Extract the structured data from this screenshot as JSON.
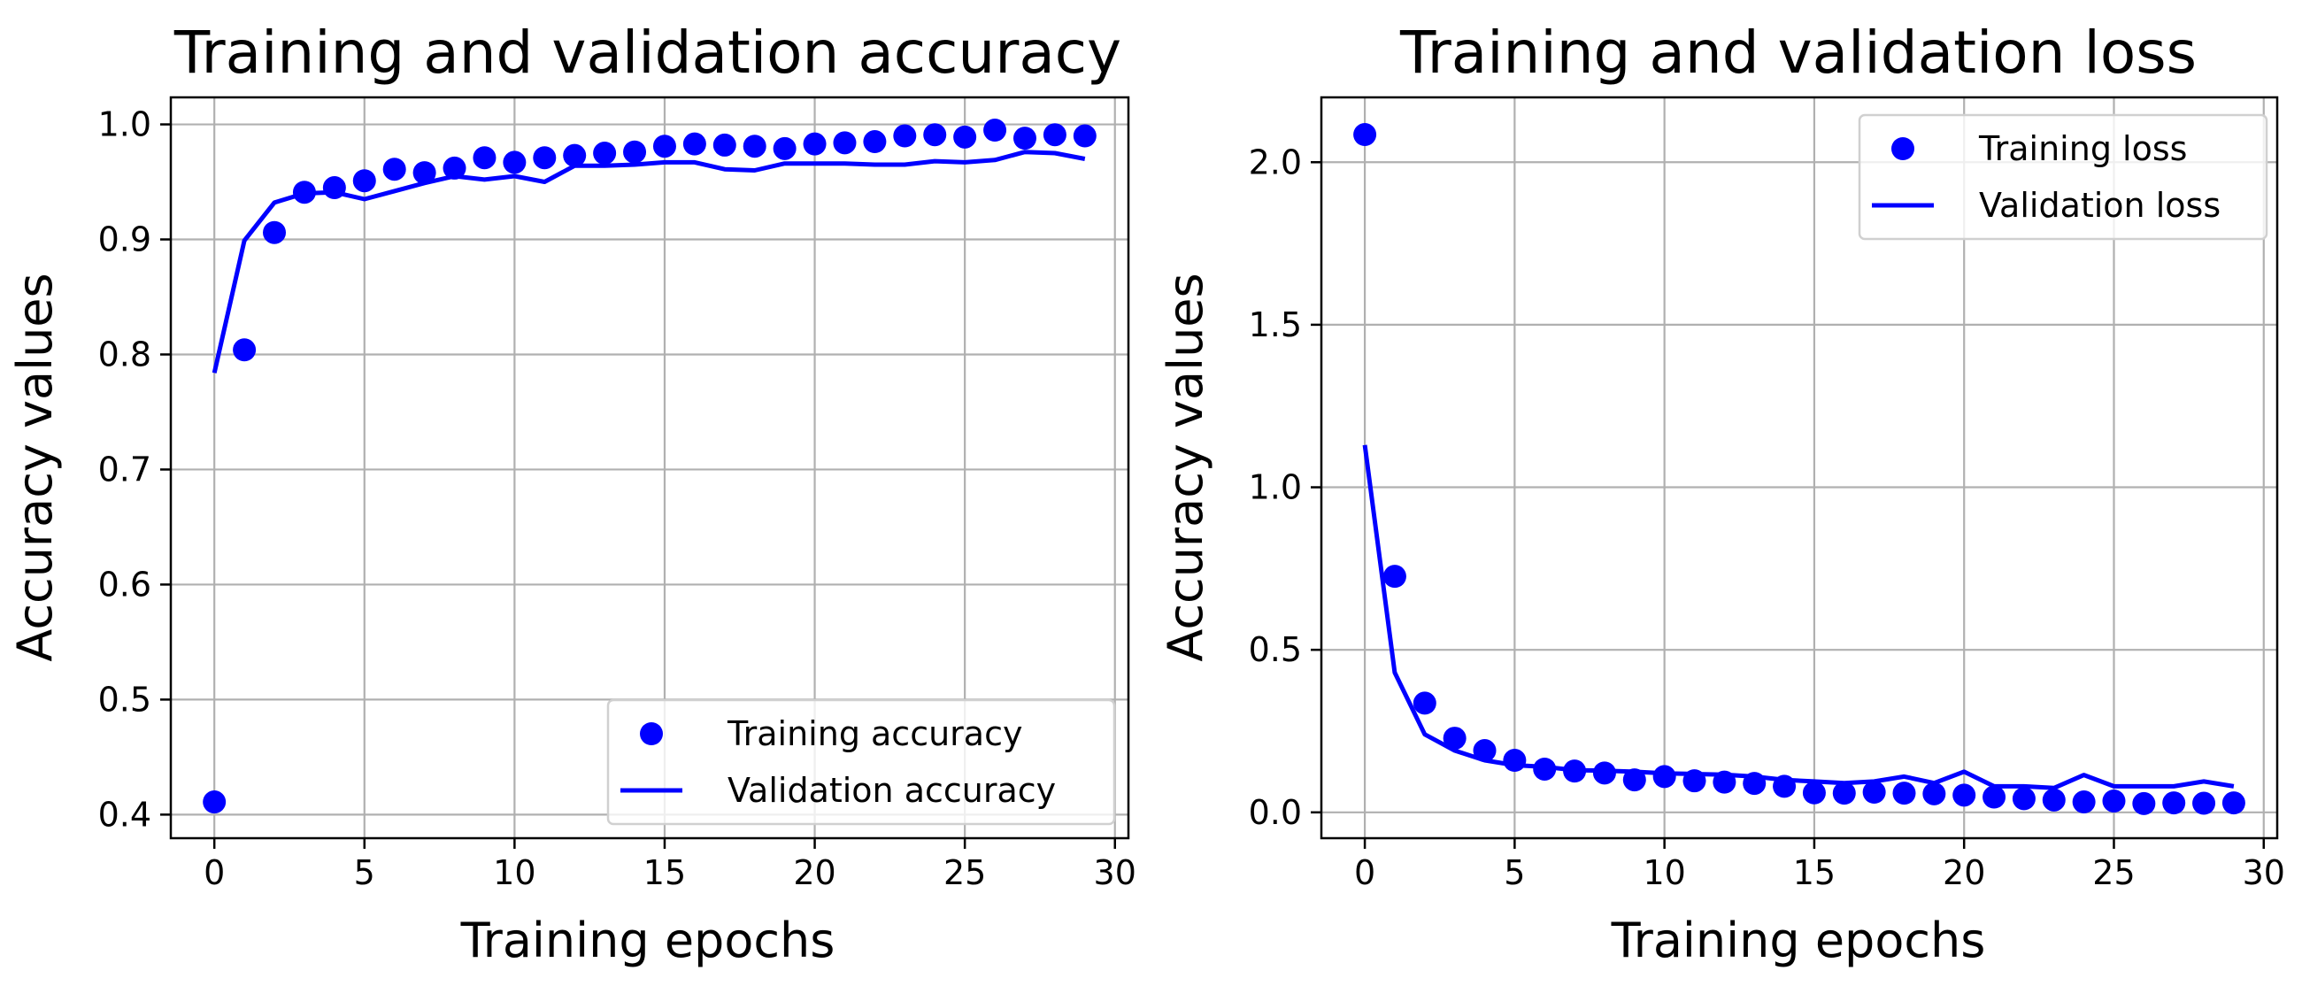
{
  "chart_data": [
    {
      "type": "line",
      "title": "Training and validation accuracy",
      "xlabel": "Training epochs",
      "ylabel": "Accuracy values",
      "xlim": [
        -1.45,
        30.45
      ],
      "ylim": [
        0.3795,
        1.0235
      ],
      "xticks": [
        0,
        5,
        10,
        15,
        20,
        25,
        30
      ],
      "xtick_labels": [
        "0",
        "5",
        "10",
        "15",
        "20",
        "25",
        "30"
      ],
      "yticks": [
        0.4,
        0.5,
        0.6,
        0.7,
        0.8,
        0.9,
        1.0
      ],
      "ytick_labels": [
        "0.4",
        "0.5",
        "0.6",
        "0.7",
        "0.8",
        "0.9",
        "1.0"
      ],
      "grid": true,
      "legend_position": "lower-right",
      "color": "#0000ff",
      "x": [
        0,
        1,
        2,
        3,
        4,
        5,
        6,
        7,
        8,
        9,
        10,
        11,
        12,
        13,
        14,
        15,
        16,
        17,
        18,
        19,
        20,
        21,
        22,
        23,
        24,
        25,
        26,
        27,
        28,
        29
      ],
      "series": [
        {
          "name": "Training accuracy",
          "style": "markers",
          "values": [
            0.411,
            0.804,
            0.906,
            0.941,
            0.945,
            0.951,
            0.961,
            0.958,
            0.962,
            0.971,
            0.967,
            0.971,
            0.973,
            0.975,
            0.976,
            0.981,
            0.983,
            0.982,
            0.981,
            0.979,
            0.983,
            0.984,
            0.985,
            0.99,
            0.991,
            0.989,
            0.995,
            0.988,
            0.991,
            0.99
          ]
        },
        {
          "name": "Validation accuracy",
          "style": "line",
          "values": [
            0.784,
            0.899,
            0.932,
            0.94,
            0.941,
            0.935,
            0.942,
            0.949,
            0.955,
            0.952,
            0.955,
            0.95,
            0.964,
            0.964,
            0.965,
            0.967,
            0.967,
            0.961,
            0.96,
            0.966,
            0.966,
            0.966,
            0.965,
            0.965,
            0.968,
            0.967,
            0.969,
            0.976,
            0.975,
            0.97
          ]
        }
      ]
    },
    {
      "type": "line",
      "title": "Training and validation loss",
      "xlabel": "Training epochs",
      "ylabel": "Accuracy values",
      "xlim": [
        -1.45,
        30.45
      ],
      "ylim": [
        -0.0795,
        2.1995
      ],
      "xticks": [
        0,
        5,
        10,
        15,
        20,
        25,
        30
      ],
      "xtick_labels": [
        "0",
        "5",
        "10",
        "15",
        "20",
        "25",
        "30"
      ],
      "yticks": [
        0.0,
        0.5,
        1.0,
        1.5,
        2.0
      ],
      "ytick_labels": [
        "0.0",
        "0.5",
        "1.0",
        "1.5",
        "2.0"
      ],
      "grid": true,
      "legend_position": "upper-right",
      "color": "#0000ff",
      "x": [
        0,
        1,
        2,
        3,
        4,
        5,
        6,
        7,
        8,
        9,
        10,
        11,
        12,
        13,
        14,
        15,
        16,
        17,
        18,
        19,
        20,
        21,
        22,
        23,
        24,
        25,
        26,
        27,
        28,
        29
      ],
      "series": [
        {
          "name": "Training loss",
          "style": "markers",
          "values": [
            2.085,
            0.726,
            0.336,
            0.228,
            0.19,
            0.16,
            0.133,
            0.127,
            0.121,
            0.1,
            0.11,
            0.097,
            0.093,
            0.089,
            0.08,
            0.06,
            0.059,
            0.062,
            0.059,
            0.057,
            0.053,
            0.047,
            0.042,
            0.038,
            0.032,
            0.035,
            0.027,
            0.029,
            0.028,
            0.029
          ]
        },
        {
          "name": "Validation loss",
          "style": "line",
          "values": [
            1.13,
            0.43,
            0.24,
            0.19,
            0.16,
            0.145,
            0.14,
            0.13,
            0.128,
            0.125,
            0.12,
            0.118,
            0.116,
            0.11,
            0.1,
            0.095,
            0.09,
            0.095,
            0.11,
            0.09,
            0.125,
            0.08,
            0.08,
            0.075,
            0.115,
            0.08,
            0.08,
            0.08,
            0.095,
            0.08
          ]
        }
      ]
    }
  ]
}
